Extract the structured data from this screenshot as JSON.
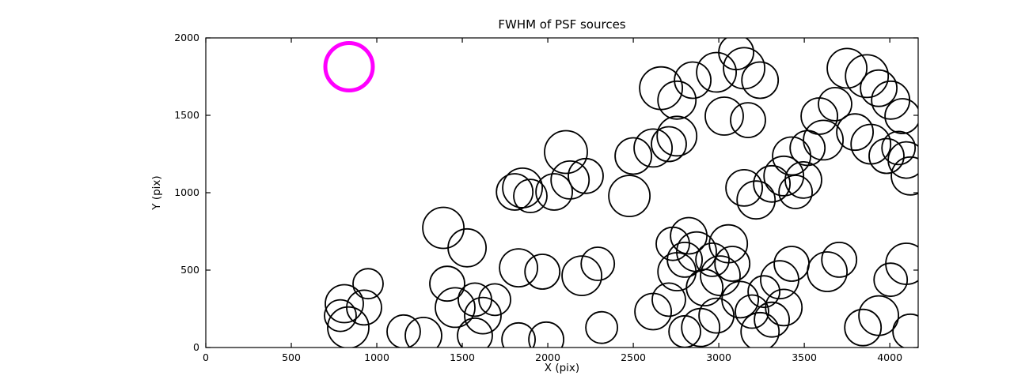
{
  "chart_data": {
    "type": "scatter",
    "title": "FWHM of PSF sources",
    "xlabel": "X (pix)",
    "ylabel": "Y (pix)",
    "xlim": [
      0,
      4166
    ],
    "ylim": [
      0,
      2000
    ],
    "xticks": [
      0,
      500,
      1000,
      1500,
      2000,
      2500,
      3000,
      3500,
      4000
    ],
    "yticks": [
      0,
      500,
      1000,
      1500,
      2000
    ],
    "grid": false,
    "legend": null,
    "marker_style": "open-circle",
    "marker_color": "#000000",
    "highlight_color": "#ff00ff",
    "axis_color": "#000000",
    "background_color": "#ffffff",
    "highlighted_source": {
      "x": 838,
      "y": 1814,
      "r": 30,
      "stroke_width": 5
    },
    "sources": [
      {
        "x": 810,
        "y": 283,
        "r": 24
      },
      {
        "x": 833,
        "y": 129,
        "r": 26
      },
      {
        "x": 926,
        "y": 258,
        "r": 22
      },
      {
        "x": 787,
        "y": 206,
        "r": 20
      },
      {
        "x": 949,
        "y": 412,
        "r": 19
      },
      {
        "x": 1157,
        "y": 103,
        "r": 21
      },
      {
        "x": 1273,
        "y": 77,
        "r": 23
      },
      {
        "x": 1389,
        "y": 773,
        "r": 26
      },
      {
        "x": 1528,
        "y": 644,
        "r": 24
      },
      {
        "x": 1412,
        "y": 412,
        "r": 22
      },
      {
        "x": 1458,
        "y": 258,
        "r": 25
      },
      {
        "x": 1574,
        "y": 309,
        "r": 21
      },
      {
        "x": 1620,
        "y": 206,
        "r": 23
      },
      {
        "x": 1690,
        "y": 309,
        "r": 20
      },
      {
        "x": 1574,
        "y": 77,
        "r": 22
      },
      {
        "x": 1829,
        "y": 515,
        "r": 24
      },
      {
        "x": 1968,
        "y": 490,
        "r": 22
      },
      {
        "x": 1806,
        "y": 1005,
        "r": 23
      },
      {
        "x": 1852,
        "y": 1031,
        "r": 25
      },
      {
        "x": 1898,
        "y": 979,
        "r": 21
      },
      {
        "x": 2106,
        "y": 1263,
        "r": 27
      },
      {
        "x": 2130,
        "y": 1082,
        "r": 24
      },
      {
        "x": 2222,
        "y": 1108,
        "r": 22
      },
      {
        "x": 2037,
        "y": 1005,
        "r": 23
      },
      {
        "x": 2199,
        "y": 464,
        "r": 25
      },
      {
        "x": 2292,
        "y": 541,
        "r": 21
      },
      {
        "x": 1991,
        "y": 52,
        "r": 22
      },
      {
        "x": 2315,
        "y": 129,
        "r": 20
      },
      {
        "x": 2477,
        "y": 979,
        "r": 26
      },
      {
        "x": 2500,
        "y": 1237,
        "r": 23
      },
      {
        "x": 2616,
        "y": 1289,
        "r": 24
      },
      {
        "x": 2708,
        "y": 1314,
        "r": 22
      },
      {
        "x": 2755,
        "y": 1366,
        "r": 25
      },
      {
        "x": 2662,
        "y": 1675,
        "r": 27
      },
      {
        "x": 2755,
        "y": 1598,
        "r": 24
      },
      {
        "x": 2847,
        "y": 1727,
        "r": 23
      },
      {
        "x": 2986,
        "y": 1778,
        "r": 25
      },
      {
        "x": 3102,
        "y": 1907,
        "r": 22
      },
      {
        "x": 3148,
        "y": 1804,
        "r": 26
      },
      {
        "x": 3241,
        "y": 1727,
        "r": 23
      },
      {
        "x": 3032,
        "y": 1495,
        "r": 24
      },
      {
        "x": 3171,
        "y": 1469,
        "r": 22
      },
      {
        "x": 2616,
        "y": 232,
        "r": 23
      },
      {
        "x": 2708,
        "y": 309,
        "r": 21
      },
      {
        "x": 2755,
        "y": 490,
        "r": 24
      },
      {
        "x": 2801,
        "y": 567,
        "r": 22
      },
      {
        "x": 2870,
        "y": 619,
        "r": 25
      },
      {
        "x": 2731,
        "y": 670,
        "r": 21
      },
      {
        "x": 2824,
        "y": 722,
        "r": 23
      },
      {
        "x": 2894,
        "y": 129,
        "r": 24
      },
      {
        "x": 2986,
        "y": 206,
        "r": 22
      },
      {
        "x": 2801,
        "y": 103,
        "r": 20
      },
      {
        "x": 2917,
        "y": 387,
        "r": 23
      },
      {
        "x": 3009,
        "y": 464,
        "r": 25
      },
      {
        "x": 3079,
        "y": 541,
        "r": 22
      },
      {
        "x": 2963,
        "y": 567,
        "r": 21
      },
      {
        "x": 3056,
        "y": 670,
        "r": 24
      },
      {
        "x": 3125,
        "y": 309,
        "r": 23
      },
      {
        "x": 3194,
        "y": 232,
        "r": 21
      },
      {
        "x": 3241,
        "y": 103,
        "r": 24
      },
      {
        "x": 3310,
        "y": 180,
        "r": 22
      },
      {
        "x": 3380,
        "y": 258,
        "r": 23
      },
      {
        "x": 3264,
        "y": 361,
        "r": 20
      },
      {
        "x": 3356,
        "y": 438,
        "r": 24
      },
      {
        "x": 3426,
        "y": 541,
        "r": 22
      },
      {
        "x": 3634,
        "y": 490,
        "r": 25
      },
      {
        "x": 3704,
        "y": 567,
        "r": 22
      },
      {
        "x": 3310,
        "y": 1057,
        "r": 23
      },
      {
        "x": 3380,
        "y": 1108,
        "r": 25
      },
      {
        "x": 3449,
        "y": 1005,
        "r": 21
      },
      {
        "x": 3495,
        "y": 1082,
        "r": 23
      },
      {
        "x": 3426,
        "y": 1237,
        "r": 24
      },
      {
        "x": 3519,
        "y": 1289,
        "r": 22
      },
      {
        "x": 3611,
        "y": 1340,
        "r": 25
      },
      {
        "x": 3588,
        "y": 1495,
        "r": 23
      },
      {
        "x": 3680,
        "y": 1572,
        "r": 21
      },
      {
        "x": 3750,
        "y": 1804,
        "r": 25
      },
      {
        "x": 3866,
        "y": 1753,
        "r": 27
      },
      {
        "x": 3935,
        "y": 1675,
        "r": 23
      },
      {
        "x": 4005,
        "y": 1598,
        "r": 24
      },
      {
        "x": 4074,
        "y": 1495,
        "r": 22
      },
      {
        "x": 3796,
        "y": 1392,
        "r": 23
      },
      {
        "x": 3889,
        "y": 1314,
        "r": 25
      },
      {
        "x": 3981,
        "y": 1237,
        "r": 22
      },
      {
        "x": 4051,
        "y": 1289,
        "r": 21
      },
      {
        "x": 4097,
        "y": 1211,
        "r": 23
      },
      {
        "x": 4120,
        "y": 1108,
        "r": 24
      },
      {
        "x": 3843,
        "y": 129,
        "r": 23
      },
      {
        "x": 3935,
        "y": 206,
        "r": 25
      },
      {
        "x": 4097,
        "y": 541,
        "r": 26
      },
      {
        "x": 4120,
        "y": 103,
        "r": 22
      },
      {
        "x": 4005,
        "y": 438,
        "r": 21
      },
      {
        "x": 3148,
        "y": 1031,
        "r": 23
      },
      {
        "x": 3218,
        "y": 953,
        "r": 24
      },
      {
        "x": 1829,
        "y": 52,
        "r": 21
      }
    ]
  }
}
